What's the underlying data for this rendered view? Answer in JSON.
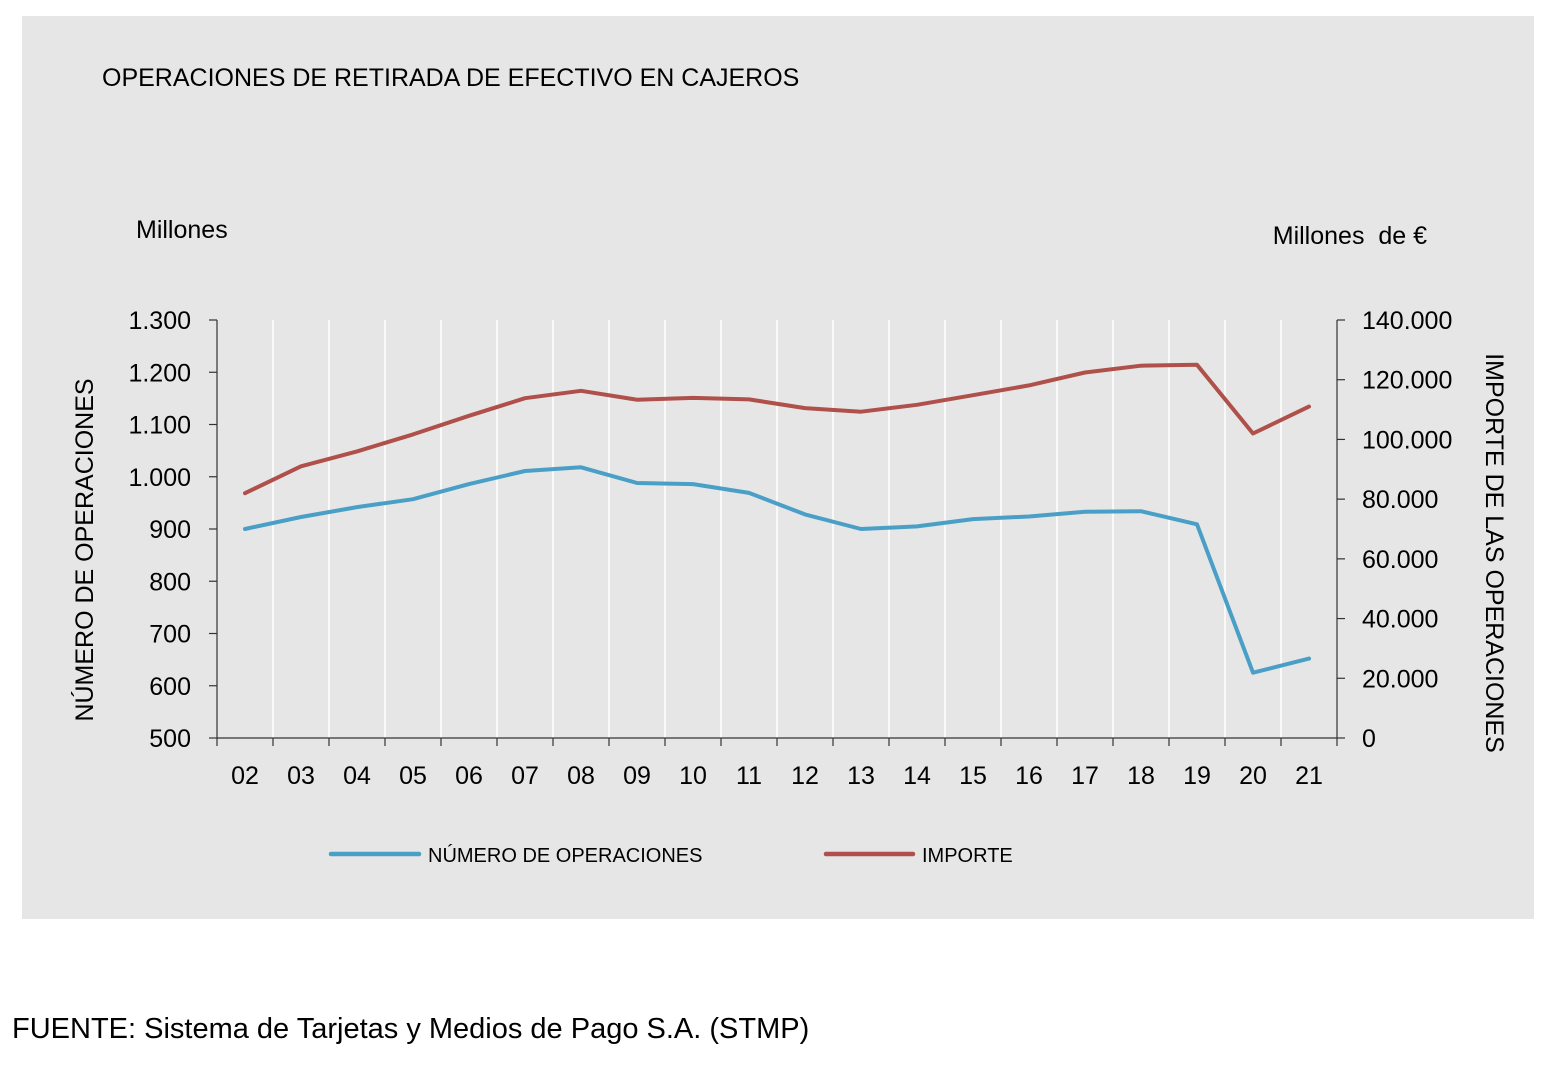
{
  "chart_data": {
    "type": "line",
    "title": "OPERACIONES DE RETIRADA DE EFECTIVO EN CAJEROS",
    "left_unit": "Millones",
    "right_unit": "Millones  de €",
    "ylabel": "NÚMERO DE OPERACIONES",
    "y2label": "IMPORTE DE LAS OPERACIONES",
    "categories": [
      "02",
      "03",
      "04",
      "05",
      "06",
      "07",
      "08",
      "09",
      "10",
      "11",
      "12",
      "13",
      "14",
      "15",
      "16",
      "17",
      "18",
      "19",
      "20",
      "21"
    ],
    "ylim": [
      500,
      1300
    ],
    "y_ticks": [
      500,
      600,
      700,
      800,
      900,
      1000,
      1100,
      1200,
      1300
    ],
    "y_tick_labels": [
      "500",
      "600",
      "700",
      "800",
      "900",
      "1.000",
      "1.100",
      "1.200",
      "1.300"
    ],
    "y2lim": [
      0,
      140000
    ],
    "y2_ticks": [
      0,
      20000,
      40000,
      60000,
      80000,
      100000,
      120000,
      140000
    ],
    "y2_tick_labels": [
      "0",
      "20.000",
      "40.000",
      "60.000",
      "80.000",
      "100.000",
      "120.000",
      "140.000"
    ],
    "grid": "vertical",
    "legend_position": "bottom",
    "series": [
      {
        "name": "NÚMERO DE OPERACIONES",
        "axis": "left",
        "color": "#4a9fc6",
        "values": [
          900,
          923,
          942,
          957,
          986,
          1011,
          1018,
          988,
          986,
          969,
          928,
          900,
          905,
          919,
          924,
          933,
          934,
          909,
          625,
          652
        ]
      },
      {
        "name": "IMPORTE",
        "axis": "right",
        "color": "#b0504a",
        "values": [
          82000,
          91000,
          96000,
          101700,
          107900,
          113800,
          116300,
          113300,
          113900,
          113400,
          110500,
          109300,
          111600,
          114800,
          118100,
          122400,
          124700,
          125000,
          102000,
          111000
        ]
      }
    ]
  },
  "source": "FUENTE: Sistema de Tarjetas y Medios de Pago S.A. (STMP)"
}
